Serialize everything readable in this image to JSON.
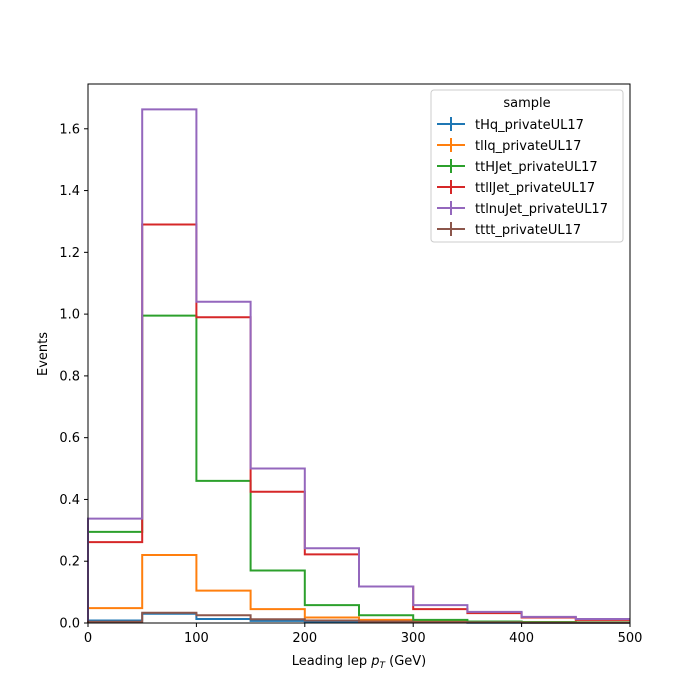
{
  "chart_data": {
    "type": "histogram-step",
    "title": "",
    "xlabel_main": "Leading lep ",
    "xlabel_sym": "p",
    "xlabel_sub": "T",
    "xlabel_unit": " (GeV)",
    "ylabel": "Events",
    "xlim": [
      0,
      500
    ],
    "ylim": [
      0,
      1.745
    ],
    "xticks": [
      0,
      100,
      200,
      300,
      400,
      500
    ],
    "xtick_labels": [
      "0",
      "100",
      "200",
      "300",
      "400",
      "500"
    ],
    "yticks": [
      0.0,
      0.2,
      0.4,
      0.6,
      0.8,
      1.0,
      1.2,
      1.4,
      1.6
    ],
    "ytick_labels": [
      "0.0",
      "0.2",
      "0.4",
      "0.6",
      "0.8",
      "1.0",
      "1.2",
      "1.4",
      "1.6"
    ],
    "grid": false,
    "legend": {
      "title": "sample",
      "placement": "top-right"
    },
    "bin_edges": [
      0,
      50,
      100,
      150,
      200,
      250,
      300,
      350,
      400,
      450,
      500
    ],
    "series": [
      {
        "name": "tHq_privateUL17",
        "color": "#1f77b4",
        "values": [
          0.008,
          0.03,
          0.013,
          0.007,
          0.004,
          0.003,
          0.002,
          0.001,
          0.001,
          0.001
        ]
      },
      {
        "name": "tllq_privateUL17",
        "color": "#ff7f0e",
        "values": [
          0.048,
          0.22,
          0.105,
          0.045,
          0.018,
          0.01,
          0.006,
          0.004,
          0.003,
          0.002
        ]
      },
      {
        "name": "ttHJet_privateUL17",
        "color": "#2ca02c",
        "values": [
          0.295,
          0.995,
          0.46,
          0.17,
          0.058,
          0.025,
          0.01,
          0.005,
          0.003,
          0.002
        ]
      },
      {
        "name": "ttllJet_privateUL17",
        "color": "#d62728",
        "values": [
          0.262,
          1.29,
          0.99,
          0.425,
          0.222,
          0.118,
          0.045,
          0.032,
          0.018,
          0.01
        ]
      },
      {
        "name": "ttlnuJet_privateUL17",
        "color": "#9467bd",
        "values": [
          0.338,
          1.663,
          1.04,
          0.5,
          0.242,
          0.118,
          0.058,
          0.036,
          0.02,
          0.013
        ]
      },
      {
        "name": "tttt_privateUL17",
        "color": "#8c564b",
        "values": [
          0.004,
          0.033,
          0.025,
          0.012,
          0.008,
          0.005,
          0.003,
          0.002,
          0.001,
          0.001
        ]
      }
    ]
  }
}
